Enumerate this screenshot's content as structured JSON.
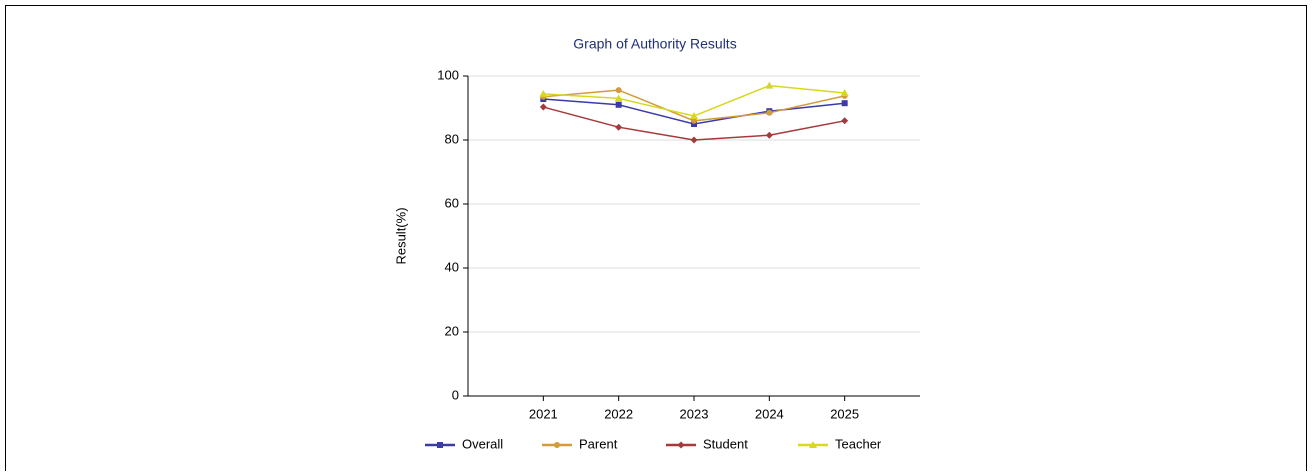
{
  "chart_data": {
    "type": "line",
    "title": "Graph of Authority Results",
    "y_label": "Result(%)",
    "categories": [
      "2021",
      "2022",
      "2023",
      "2024",
      "2025"
    ],
    "series": [
      {
        "name": "Overall",
        "color": "#3b3ba8",
        "marker": "square",
        "values": [
          92.8,
          91,
          85,
          89,
          91.5
        ]
      },
      {
        "name": "Parent",
        "color": "#d49a3c",
        "marker": "circle",
        "values": [
          93.5,
          95.6,
          86,
          88.5,
          93.8
        ]
      },
      {
        "name": "Student",
        "color": "#a63a3a",
        "marker": "diamond",
        "values": [
          90.3,
          84,
          80,
          81.5,
          86
        ]
      },
      {
        "name": "Teacher",
        "color": "#d8d820",
        "marker": "triangle",
        "values": [
          94.4,
          93,
          87.5,
          97,
          94.7
        ]
      }
    ],
    "ylim": [
      0,
      100
    ],
    "yticks": [
      0,
      20,
      40,
      60,
      80,
      100
    ],
    "grid": true,
    "legend": "bottom"
  }
}
